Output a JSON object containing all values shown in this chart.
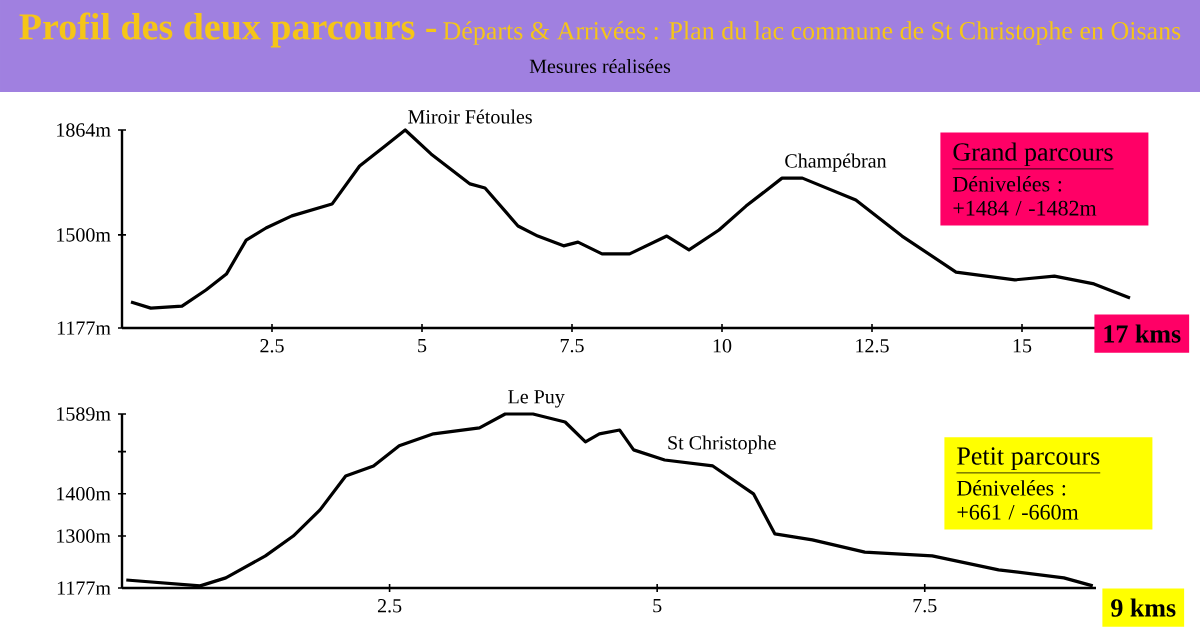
{
  "chart_data": [
    {
      "type": "line",
      "title": "Profil des deux parcours -",
      "subtitle": "Départs & Arrivées : Plan du lac commune de St Christophe en Oisans",
      "xlabel": "17 kms",
      "annotations": [
        "Mesures réalisées",
        "Grand parcours",
        "Dénivelées :",
        "+1484 / -1482m",
        {
          "text": "Miroir Fétoules",
          "x": 4.72,
          "y": 1864
        },
        {
          "text": "Champébran",
          "x": 11.0,
          "y": 1697
        }
      ],
      "x": [
        0.15,
        0.48,
        1.0,
        1.4,
        1.74,
        2.07,
        2.4,
        2.83,
        3.5,
        3.96,
        4.39,
        4.72,
        5.15,
        5.8,
        6.05,
        6.6,
        6.93,
        7.36,
        7.6,
        8.0,
        8.46,
        9.08,
        9.45,
        9.95,
        10.4,
        11.0,
        11.34,
        12.23,
        13.0,
        13.9,
        14.88,
        15.54,
        16.2,
        16.8
      ],
      "series": [
        {
          "color": "#000000",
          "values": [
            1267,
            1246,
            1253,
            1309,
            1364,
            1482,
            1524,
            1566,
            1607,
            1739,
            1809,
            1864,
            1781,
            1677,
            1663,
            1531,
            1496,
            1462,
            1475,
            1434,
            1434,
            1496,
            1448,
            1517,
            1600,
            1697,
            1697,
            1621,
            1496,
            1371,
            1344,
            1357,
            1330,
            1281
          ]
        }
      ],
      "xlim": [
        0,
        17
      ],
      "ylim": [
        1177,
        1864
      ],
      "xticks": [
        2.5,
        5,
        7.5,
        10,
        12.5,
        15
      ],
      "yticks": [
        {
          "value": 1177,
          "label": "1177m"
        },
        {
          "value": 1500,
          "label": "1500m"
        },
        {
          "value": 1864,
          "label": "1864m"
        }
      ],
      "grid": false
    },
    {
      "type": "line",
      "xlabel": "9 kms",
      "annotations": [
        "Petit parcours",
        "Dénivelées :",
        "+661 / -660m",
        {
          "text": "Le Puy",
          "x": 3.58,
          "y": 1589
        },
        {
          "text": "St Christophe",
          "x": 5.07,
          "y": 1480
        }
      ],
      "x": [
        0.04,
        0.73,
        0.97,
        1.34,
        1.6,
        1.85,
        2.09,
        2.35,
        2.59,
        2.91,
        3.34,
        3.58,
        3.84,
        4.14,
        4.33,
        4.46,
        4.65,
        4.78,
        5.07,
        5.52,
        5.9,
        6.1,
        6.45,
        6.94,
        7.57,
        8.19,
        8.8,
        9.07
      ],
      "series": [
        {
          "color": "#000000",
          "values": [
            1196,
            1182,
            1201,
            1253,
            1300,
            1362,
            1442,
            1466,
            1514,
            1542,
            1556,
            1589,
            1589,
            1570,
            1523,
            1542,
            1551,
            1504,
            1480,
            1466,
            1400,
            1305,
            1291,
            1262,
            1253,
            1220,
            1201,
            1182
          ]
        }
      ],
      "xlim": [
        0,
        9.1
      ],
      "ylim": [
        1177,
        1589
      ],
      "xticks": [
        2.5,
        5,
        7.5
      ],
      "yticks": [
        {
          "value": 1177,
          "label": "1177m"
        },
        {
          "value": 1300,
          "label": "1300m"
        },
        {
          "value": 1400,
          "label": "1400m"
        },
        {
          "value": 1500,
          "label": null
        },
        {
          "value": 1589,
          "label": "1589m"
        }
      ],
      "grid": false
    }
  ]
}
